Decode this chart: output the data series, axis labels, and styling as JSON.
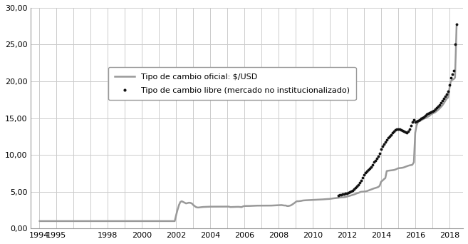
{
  "official_x": [
    1994.0,
    1994.08,
    1994.17,
    1994.25,
    1994.33,
    1994.42,
    1994.5,
    1994.58,
    1994.67,
    1994.75,
    1994.83,
    1994.92,
    1995.0,
    1995.08,
    1995.17,
    1995.25,
    1995.33,
    1995.42,
    1995.5,
    1995.58,
    1995.67,
    1995.75,
    1995.83,
    1995.92,
    1996.0,
    1996.08,
    1996.17,
    1996.25,
    1996.33,
    1996.42,
    1996.5,
    1996.58,
    1996.67,
    1996.75,
    1996.83,
    1996.92,
    1997.0,
    1997.08,
    1997.17,
    1997.25,
    1997.33,
    1997.42,
    1997.5,
    1997.58,
    1997.67,
    1997.75,
    1997.83,
    1997.92,
    1998.0,
    1998.08,
    1998.17,
    1998.25,
    1998.33,
    1998.42,
    1998.5,
    1998.58,
    1998.67,
    1998.75,
    1998.83,
    1998.92,
    1999.0,
    1999.08,
    1999.17,
    1999.25,
    1999.33,
    1999.42,
    1999.5,
    1999.58,
    1999.67,
    1999.75,
    1999.83,
    1999.92,
    2000.0,
    2000.08,
    2000.17,
    2000.25,
    2000.33,
    2000.42,
    2000.5,
    2000.58,
    2000.67,
    2000.75,
    2000.83,
    2000.92,
    2001.0,
    2001.08,
    2001.17,
    2001.25,
    2001.33,
    2001.42,
    2001.5,
    2001.58,
    2001.67,
    2001.75,
    2001.83,
    2001.92,
    2002.0,
    2002.08,
    2002.17,
    2002.25,
    2002.33,
    2002.42,
    2002.5,
    2002.58,
    2002.67,
    2002.75,
    2002.83,
    2002.92,
    2003.0,
    2003.08,
    2003.17,
    2003.25,
    2003.33,
    2003.42,
    2003.5,
    2003.58,
    2003.67,
    2003.75,
    2003.83,
    2003.92,
    2004.0,
    2004.08,
    2004.17,
    2004.25,
    2004.33,
    2004.42,
    2004.5,
    2004.58,
    2004.67,
    2004.75,
    2004.83,
    2004.92,
    2005.0,
    2005.08,
    2005.17,
    2005.25,
    2005.33,
    2005.42,
    2005.5,
    2005.58,
    2005.67,
    2005.75,
    2005.83,
    2005.92,
    2006.0,
    2006.08,
    2006.17,
    2006.25,
    2006.33,
    2006.42,
    2006.5,
    2006.58,
    2006.67,
    2006.75,
    2006.83,
    2006.92,
    2007.0,
    2007.08,
    2007.17,
    2007.25,
    2007.33,
    2007.42,
    2007.5,
    2007.58,
    2007.67,
    2007.75,
    2007.83,
    2007.92,
    2008.0,
    2008.08,
    2008.17,
    2008.25,
    2008.33,
    2008.42,
    2008.5,
    2008.58,
    2008.67,
    2008.75,
    2008.83,
    2008.92,
    2009.0,
    2009.08,
    2009.17,
    2009.25,
    2009.33,
    2009.42,
    2009.5,
    2009.58,
    2009.67,
    2009.75,
    2009.83,
    2009.92,
    2010.0,
    2010.08,
    2010.17,
    2010.25,
    2010.33,
    2010.42,
    2010.5,
    2010.58,
    2010.67,
    2010.75,
    2010.83,
    2010.92,
    2011.0,
    2011.08,
    2011.17,
    2011.25,
    2011.33,
    2011.42,
    2011.5,
    2011.58,
    2011.67,
    2011.75,
    2011.83,
    2011.92,
    2012.0,
    2012.08,
    2012.17,
    2012.25,
    2012.33,
    2012.42,
    2012.5,
    2012.58,
    2012.67,
    2012.75,
    2012.83,
    2012.92,
    2013.0,
    2013.08,
    2013.17,
    2013.25,
    2013.33,
    2013.42,
    2013.5,
    2013.58,
    2013.67,
    2013.75,
    2013.83,
    2013.92,
    2014.0,
    2014.08,
    2014.17,
    2014.25,
    2014.33,
    2014.42,
    2014.5,
    2014.58,
    2014.67,
    2014.75,
    2014.83,
    2014.92,
    2015.0,
    2015.08,
    2015.17,
    2015.25,
    2015.33,
    2015.42,
    2015.5,
    2015.58,
    2015.67,
    2015.75,
    2015.83,
    2015.92,
    2016.0,
    2016.08,
    2016.17,
    2016.25,
    2016.33,
    2016.42,
    2016.5,
    2016.58,
    2016.67,
    2016.75,
    2016.83,
    2016.92,
    2017.0,
    2017.08,
    2017.17,
    2017.25,
    2017.33,
    2017.42,
    2017.5,
    2017.58,
    2017.67,
    2017.75,
    2017.83,
    2017.92,
    2018.0,
    2018.08,
    2018.17,
    2018.25,
    2018.33,
    2018.42
  ],
  "official_y": [
    1.0,
    1.0,
    1.0,
    1.0,
    1.0,
    1.0,
    1.0,
    1.0,
    1.0,
    1.0,
    1.0,
    1.0,
    1.0,
    1.0,
    1.0,
    1.0,
    1.0,
    1.0,
    1.0,
    1.0,
    1.0,
    1.0,
    1.0,
    1.0,
    1.0,
    1.0,
    1.0,
    1.0,
    1.0,
    1.0,
    1.0,
    1.0,
    1.0,
    1.0,
    1.0,
    1.0,
    1.0,
    1.0,
    1.0,
    1.0,
    1.0,
    1.0,
    1.0,
    1.0,
    1.0,
    1.0,
    1.0,
    1.0,
    1.0,
    1.0,
    1.0,
    1.0,
    1.0,
    1.0,
    1.0,
    1.0,
    1.0,
    1.0,
    1.0,
    1.0,
    1.0,
    1.0,
    1.0,
    1.0,
    1.0,
    1.0,
    1.0,
    1.0,
    1.0,
    1.0,
    1.0,
    1.0,
    1.0,
    1.0,
    1.0,
    1.0,
    1.0,
    1.0,
    1.0,
    1.0,
    1.0,
    1.0,
    1.0,
    1.0,
    1.0,
    1.0,
    1.0,
    1.0,
    1.0,
    1.0,
    1.0,
    1.0,
    1.0,
    1.0,
    1.0,
    1.0,
    1.8,
    2.5,
    3.2,
    3.6,
    3.7,
    3.6,
    3.5,
    3.4,
    3.45,
    3.5,
    3.48,
    3.4,
    3.2,
    3.05,
    2.9,
    2.85,
    2.85,
    2.88,
    2.9,
    2.92,
    2.93,
    2.94,
    2.95,
    2.96,
    2.96,
    2.96,
    2.97,
    2.97,
    2.95,
    2.96,
    2.97,
    2.97,
    2.96,
    2.96,
    2.97,
    2.97,
    2.97,
    2.97,
    2.91,
    2.92,
    2.92,
    2.93,
    2.93,
    2.94,
    2.94,
    2.92,
    2.9,
    3.0,
    3.05,
    3.05,
    3.05,
    3.06,
    3.06,
    3.07,
    3.08,
    3.09,
    3.1,
    3.1,
    3.1,
    3.1,
    3.11,
    3.1,
    3.1,
    3.1,
    3.09,
    3.1,
    3.1,
    3.11,
    3.12,
    3.12,
    3.14,
    3.15,
    3.16,
    3.17,
    3.18,
    3.15,
    3.12,
    3.12,
    3.05,
    3.05,
    3.1,
    3.18,
    3.3,
    3.45,
    3.6,
    3.7,
    3.7,
    3.72,
    3.75,
    3.8,
    3.82,
    3.83,
    3.84,
    3.85,
    3.85,
    3.87,
    3.87,
    3.88,
    3.9,
    3.91,
    3.92,
    3.93,
    3.94,
    3.95,
    3.97,
    3.98,
    3.99,
    4.0,
    4.02,
    4.05,
    4.08,
    4.1,
    4.12,
    4.14,
    4.17,
    4.2,
    4.22,
    4.23,
    4.24,
    4.28,
    4.33,
    4.38,
    4.44,
    4.5,
    4.56,
    4.62,
    4.7,
    4.77,
    4.83,
    4.92,
    4.98,
    5.0,
    5.01,
    5.03,
    5.08,
    5.15,
    5.23,
    5.3,
    5.37,
    5.44,
    5.5,
    5.56,
    5.63,
    5.8,
    6.35,
    6.5,
    6.7,
    6.85,
    7.8,
    7.85,
    7.87,
    7.9,
    7.92,
    7.95,
    8.0,
    8.1,
    8.18,
    8.2,
    8.22,
    8.25,
    8.3,
    8.38,
    8.45,
    8.52,
    8.58,
    8.62,
    8.65,
    9.0,
    13.0,
    14.0,
    14.5,
    14.6,
    14.7,
    14.8,
    14.9,
    15.0,
    15.1,
    15.2,
    15.3,
    15.5,
    15.6,
    15.7,
    15.8,
    15.95,
    16.1,
    16.3,
    16.5,
    16.7,
    17.0,
    17.3,
    17.6,
    17.8,
    19.0,
    20.0,
    20.2,
    20.3,
    20.5,
    27.5
  ],
  "free_x": [
    2011.5,
    2011.58,
    2011.67,
    2011.75,
    2011.83,
    2011.92,
    2012.0,
    2012.08,
    2012.17,
    2012.25,
    2012.33,
    2012.42,
    2012.5,
    2012.58,
    2012.67,
    2012.75,
    2012.83,
    2012.92,
    2013.0,
    2013.08,
    2013.17,
    2013.25,
    2013.33,
    2013.42,
    2013.5,
    2013.58,
    2013.67,
    2013.75,
    2013.83,
    2013.92,
    2014.0,
    2014.08,
    2014.17,
    2014.25,
    2014.33,
    2014.42,
    2014.5,
    2014.58,
    2014.67,
    2014.75,
    2014.83,
    2014.92,
    2015.0,
    2015.08,
    2015.17,
    2015.25,
    2015.33,
    2015.42,
    2015.5,
    2015.58,
    2015.67,
    2015.75,
    2015.83,
    2015.92,
    2016.0,
    2016.08,
    2016.17,
    2016.25,
    2016.33,
    2016.42,
    2016.5,
    2016.58,
    2016.67,
    2016.75,
    2016.83,
    2016.92,
    2017.0,
    2017.08,
    2017.17,
    2017.25,
    2017.33,
    2017.42,
    2017.5,
    2017.58,
    2017.67,
    2017.75,
    2017.83,
    2017.92,
    2018.0,
    2018.08,
    2018.17,
    2018.25,
    2018.33,
    2018.42
  ],
  "free_y": [
    4.5,
    4.55,
    4.6,
    4.65,
    4.7,
    4.75,
    4.8,
    4.9,
    5.0,
    5.1,
    5.2,
    5.35,
    5.5,
    5.7,
    5.9,
    6.2,
    6.5,
    6.9,
    7.3,
    7.6,
    7.8,
    8.0,
    8.2,
    8.4,
    8.7,
    9.0,
    9.2,
    9.5,
    9.8,
    10.2,
    10.8,
    11.2,
    11.5,
    11.8,
    12.0,
    12.3,
    12.5,
    12.7,
    13.0,
    13.2,
    13.4,
    13.5,
    13.5,
    13.5,
    13.4,
    13.3,
    13.2,
    13.1,
    13.0,
    13.2,
    13.5,
    14.0,
    14.5,
    14.8,
    14.5,
    14.6,
    14.7,
    14.8,
    15.0,
    15.1,
    15.2,
    15.3,
    15.5,
    15.6,
    15.7,
    15.8,
    15.9,
    16.0,
    16.2,
    16.4,
    16.6,
    16.8,
    17.1,
    17.4,
    17.7,
    18.0,
    18.3,
    18.6,
    19.5,
    20.5,
    21.0,
    21.5,
    25.0,
    27.8
  ],
  "xlim": [
    1993.5,
    2018.8
  ],
  "ylim": [
    0,
    30
  ],
  "yticks": [
    0,
    5,
    10,
    15,
    20,
    25,
    30
  ],
  "ytick_labels": [
    "0,00",
    "5,00",
    "10,00",
    "15,00",
    "20,00",
    "25,00",
    "30,00"
  ],
  "xticks": [
    1994,
    1995,
    1996,
    1997,
    1998,
    1999,
    2000,
    2001,
    2002,
    2003,
    2004,
    2005,
    2006,
    2007,
    2008,
    2009,
    2010,
    2011,
    2012,
    2013,
    2014,
    2015,
    2016,
    2017,
    2018
  ],
  "official_color": "#999999",
  "free_color": "#111111",
  "background_color": "#ffffff",
  "grid_color": "#cccccc",
  "legend_label_official": "Tipo de cambio oficial: $/USD",
  "legend_label_free": "Tipo de cambio libre (mercado no institucionalizado)",
  "legend_fontsize": 8,
  "tick_fontsize": 8,
  "official_linewidth": 1.8,
  "free_markersize": 3.5
}
